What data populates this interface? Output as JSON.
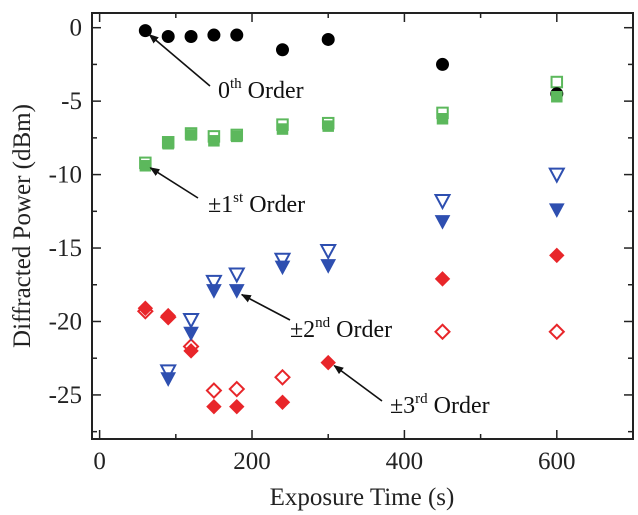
{
  "chart_data": {
    "type": "scatter",
    "title": "",
    "xlabel": "Exposure Time (s)",
    "ylabel": "Diffracted Power (dBm)",
    "xlim": [
      -10,
      700
    ],
    "ylim": [
      -28,
      1
    ],
    "x_ticks": [
      0,
      200,
      400,
      600
    ],
    "y_ticks": [
      0,
      -5,
      -10,
      -15,
      -20,
      -25
    ],
    "x_tick_labels": [
      "0",
      "200",
      "400",
      "600"
    ],
    "y_tick_labels": [
      "0",
      "-5",
      "-10",
      "-15",
      "-20",
      "-25"
    ],
    "grid": false,
    "legend": "none",
    "series": [
      {
        "key": "order0",
        "marker": "circle-filled",
        "color": "#000000",
        "x": [
          60,
          90,
          120,
          150,
          180,
          240,
          300,
          450,
          600
        ],
        "y": [
          -0.2,
          -0.6,
          -0.6,
          -0.5,
          -0.5,
          -1.5,
          -0.8,
          -2.5,
          -4.5
        ]
      },
      {
        "key": "order1-filled",
        "marker": "square-filled",
        "color": "#5cb85c",
        "x": [
          60,
          90,
          120,
          150,
          180,
          240,
          300,
          450,
          600
        ],
        "y": [
          -9.4,
          -7.9,
          -7.3,
          -7.7,
          -7.4,
          -6.9,
          -6.7,
          -6.2,
          -4.7
        ]
      },
      {
        "key": "order1-open",
        "marker": "square-open",
        "color": "#5cb85c",
        "x": [
          60,
          90,
          120,
          150,
          180,
          240,
          300,
          450,
          600
        ],
        "y": [
          -9.2,
          -7.8,
          -7.2,
          -7.4,
          -7.3,
          -6.6,
          -6.5,
          -5.8,
          -3.7
        ]
      },
      {
        "key": "order2-filled",
        "marker": "triangle-down-filled",
        "color": "#2e4fb0",
        "x": [
          90,
          120,
          150,
          180,
          240,
          300,
          450,
          600
        ],
        "y": [
          -23.9,
          -20.8,
          -17.9,
          -17.9,
          -16.3,
          -16.2,
          -13.2,
          -12.4
        ]
      },
      {
        "key": "order2-open",
        "marker": "triangle-down-open",
        "color": "#2e4fb0",
        "x": [
          90,
          120,
          150,
          180,
          240,
          300,
          450,
          600
        ],
        "y": [
          -23.4,
          -19.9,
          -17.3,
          -16.8,
          -15.8,
          -15.2,
          -11.8,
          -10.0
        ]
      },
      {
        "key": "order3-filled",
        "marker": "diamond-filled",
        "color": "#e8262a",
        "x": [
          60,
          90,
          120,
          150,
          180,
          240,
          300,
          450,
          600
        ],
        "y": [
          -19.1,
          -19.6,
          -22.0,
          -25.8,
          -25.8,
          -25.5,
          -22.8,
          -17.1,
          -15.5
        ]
      },
      {
        "key": "order3-open",
        "marker": "diamond-open",
        "color": "#e8262a",
        "x": [
          60,
          90,
          120,
          150,
          180,
          240,
          450,
          600
        ],
        "y": [
          -19.3,
          -19.7,
          -21.7,
          -24.7,
          -24.6,
          -23.8,
          -20.7,
          -20.7
        ]
      }
    ],
    "annotations": [
      {
        "key": "ann0",
        "base": "0",
        "sup": "th",
        "rest": " Order",
        "point": [
          60,
          -0.2
        ]
      },
      {
        "key": "ann1",
        "base": "±1",
        "sup": "st",
        "rest": " Order",
        "point": [
          60,
          -9.4
        ]
      },
      {
        "key": "ann2",
        "base": "±2",
        "sup": "nd",
        "rest": " Order",
        "point": [
          180,
          -17.9
        ]
      },
      {
        "key": "ann3",
        "base": "±3",
        "sup": "rd",
        "rest": " Order",
        "point": [
          300,
          -22.8
        ]
      }
    ]
  }
}
